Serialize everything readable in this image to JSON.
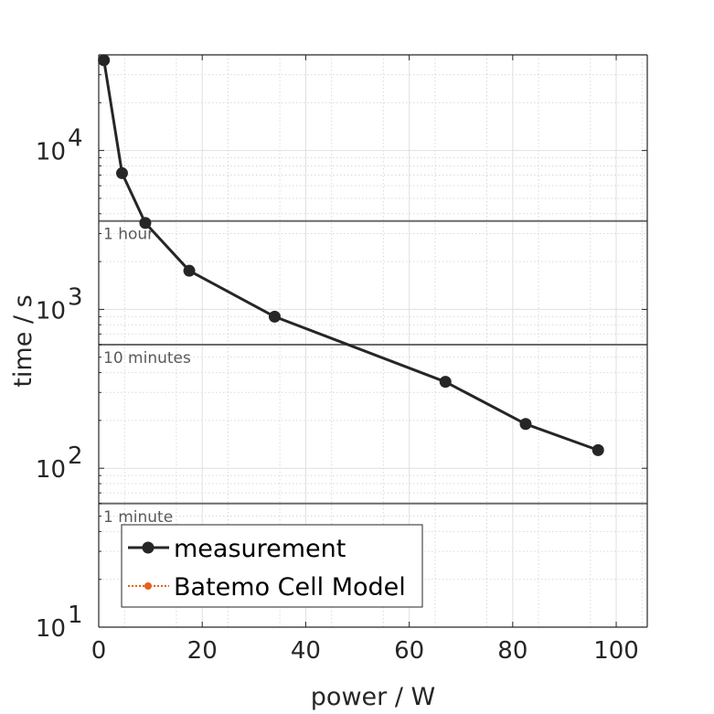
{
  "chart_data": {
    "type": "line",
    "xlabel": "power / W",
    "ylabel": "time / s",
    "xlim": [
      0,
      106
    ],
    "ylim": [
      10,
      40000
    ],
    "yscale": "log",
    "grid": true,
    "minor_grid": true,
    "x_ticks": [
      0,
      20,
      40,
      60,
      80,
      100
    ],
    "y_ticks": [
      {
        "value": 10,
        "base": "10",
        "exp": "1"
      },
      {
        "value": 100,
        "base": "10",
        "exp": "2"
      },
      {
        "value": 1000,
        "base": "10",
        "exp": "3"
      },
      {
        "value": 10000,
        "base": "10",
        "exp": "4"
      }
    ],
    "reference_lines": [
      {
        "value": 3600,
        "label": "1 hour"
      },
      {
        "value": 600,
        "label": "10 minutes"
      },
      {
        "value": 60,
        "label": "1 minute"
      }
    ],
    "series": [
      {
        "name": "measurement",
        "color": "#262626",
        "marker": "circle",
        "x": [
          1.0,
          4.5,
          9.0,
          17.5,
          34.0,
          67.0,
          82.5,
          96.5
        ],
        "y": [
          37000,
          7200,
          3500,
          1750,
          900,
          350,
          190,
          130
        ]
      },
      {
        "name": "Batemo Cell Model",
        "color": "#e8601c",
        "marker": "circle",
        "linestyle": "dotted",
        "x": [],
        "y": []
      }
    ],
    "legend_position": "bottom-left"
  }
}
